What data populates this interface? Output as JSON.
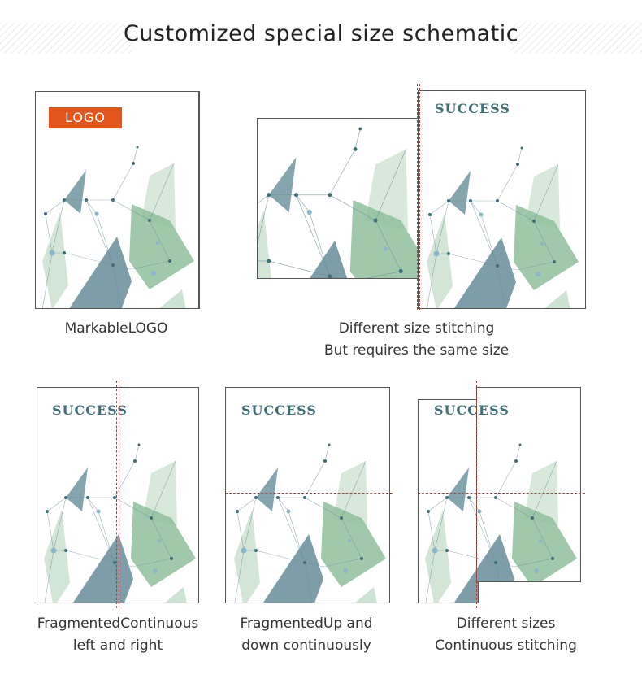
{
  "header": {
    "title": "Customized special size schematic"
  },
  "panels": {
    "logo": {
      "logo_text": "LOGO",
      "caption": "MarkableLOGO"
    },
    "stitch": {
      "brand": "SUCCESS",
      "caption_line1": "Different size stitching",
      "caption_line2": "But requires the same size"
    },
    "lr": {
      "brand": "SUCCESS",
      "caption_line1": "FragmentedContinuous",
      "caption_line2": "left and right"
    },
    "ud": {
      "brand": "SUCCESS",
      "caption_line1": "FragmentedUp and",
      "caption_line2": "down continuously"
    },
    "diff": {
      "brand": "SUCCESS",
      "caption_line1": "Different sizes",
      "caption_line2": "Continuous stitching"
    }
  },
  "colors": {
    "accent": "#e2561c",
    "brand_text": "#3e6f78",
    "guide_line": "#c0392b",
    "polygon_blue": "#6f94a0",
    "polygon_green": "#8fbf9c"
  }
}
